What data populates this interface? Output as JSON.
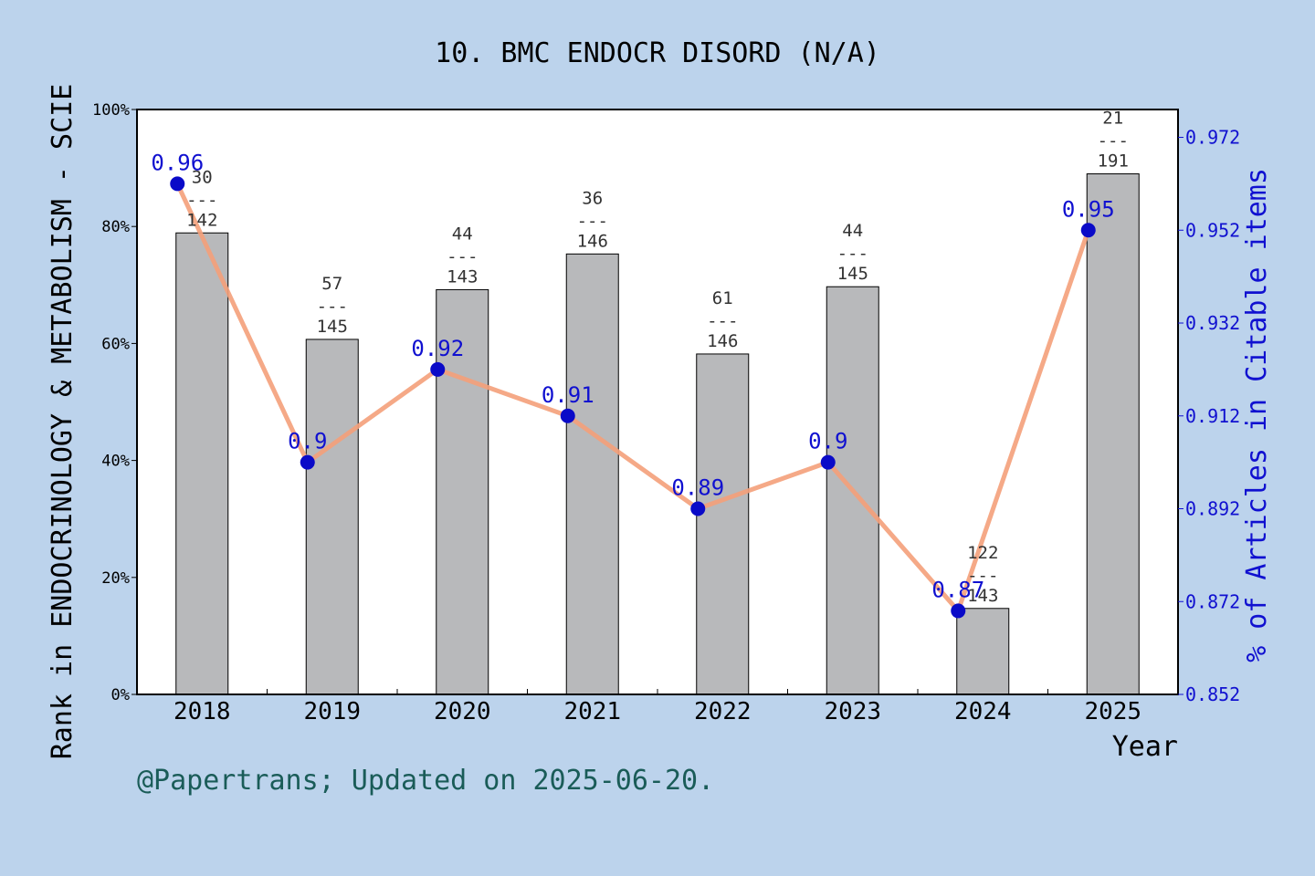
{
  "chart_data": {
    "type": "bar+line",
    "title": "10. BMC ENDOCR DISORD (N/A)",
    "xlabel": "Year",
    "ylabel_left": "Rank in ENDOCRINOLOGY & METABOLISM - SCIE",
    "ylabel_right": "% of Articles in Citable items",
    "footer": "@Papertrans; Updated on 2025-06-20.",
    "categories": [
      "2018",
      "2019",
      "2020",
      "2021",
      "2022",
      "2023",
      "2024",
      "2025"
    ],
    "left_axis": {
      "ylim": [
        0,
        100
      ],
      "ticks": [
        "0%",
        "20%",
        "40%",
        "60%",
        "80%",
        "100%"
      ]
    },
    "right_axis": {
      "ylim": [
        0.852,
        0.978
      ],
      "ticks": [
        "0.852",
        "0.872",
        "0.892",
        "0.912",
        "0.932",
        "0.952",
        "0.972"
      ]
    },
    "bars": {
      "values": [
        78.9,
        60.7,
        69.2,
        75.3,
        58.2,
        69.7,
        14.7,
        89.0
      ],
      "rank_top": [
        "30",
        "57",
        "44",
        "36",
        "61",
        "44",
        "122",
        "21"
      ],
      "rank_dash": [
        "---",
        "---",
        "---",
        "---",
        "---",
        "---",
        "---",
        "---"
      ],
      "rank_bottom": [
        "142",
        "145",
        "143",
        "146",
        "146",
        "145",
        "143",
        "191"
      ]
    },
    "line": {
      "values": [
        0.962,
        0.902,
        0.922,
        0.912,
        0.892,
        0.902,
        0.87,
        0.952
      ],
      "labels": [
        "0.96",
        "0.9",
        "0.92",
        "0.91",
        "0.89",
        "0.9",
        "0.87",
        "0.95"
      ]
    },
    "colors": {
      "bar_fill": "#b8b9bb",
      "line": "#f4a07a",
      "marker": "#0a0ac8",
      "right_axis": "#1010d0"
    },
    "grid": false
  }
}
